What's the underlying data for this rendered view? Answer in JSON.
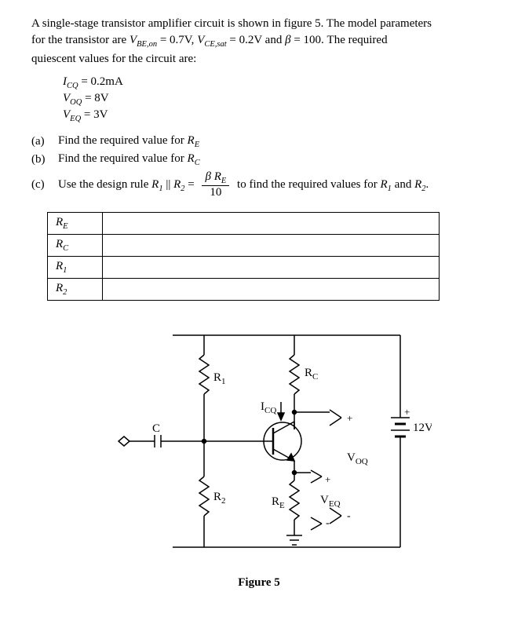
{
  "intro": {
    "line1_pre": "A single-stage transistor amplifier circuit is shown in figure 5. The model parameters",
    "line2_pre": "for the transistor are ",
    "vbe_label": "V",
    "vbe_sub": "BE,on",
    "vbe_eq": " = 0.7V, ",
    "vce_label": "V",
    "vce_sub": "CE,sat",
    "vce_eq": " = 0.2V and ",
    "beta_sym": "β",
    "beta_eq": " = 100.  The required",
    "line3": "quiescent values for the circuit are:"
  },
  "quiescent": {
    "icq_label": "I",
    "icq_sub": "CQ",
    "icq_val": " = 0.2mA",
    "voq_label": "V",
    "voq_sub": "OQ",
    "voq_val": " = 8V",
    "veq_label": "V",
    "veq_sub": "EQ",
    "veq_val": " = 3V"
  },
  "parts": {
    "a": {
      "label": "(a)",
      "text_pre": "Find the required value for ",
      "sym": "R",
      "sym_sub": "E"
    },
    "b": {
      "label": "(b)",
      "text_pre": "Find the required value for ",
      "sym": "R",
      "sym_sub": "C"
    },
    "c": {
      "label": "(c)",
      "text_pre": "Use the design rule ",
      "r1": "R",
      "r1_sub": "1",
      "parallel": " || ",
      "r2": "R",
      "r2_sub": "2",
      "eq": "  =  ",
      "num_beta": "β ",
      "num_r": "R",
      "num_r_sub": "E",
      "den": "10",
      "text_post": " to find the required values for ",
      "r1o": "R",
      "r1o_sub": "1",
      "and": " and ",
      "r2o": "R",
      "r2o_sub": "2",
      "period": "."
    }
  },
  "table": {
    "rows": [
      {
        "sym": "R",
        "sub": "E"
      },
      {
        "sym": "R",
        "sub": "C"
      },
      {
        "sym": "R",
        "sub": "1"
      },
      {
        "sym": "R",
        "sub": "2"
      }
    ]
  },
  "circuit": {
    "labels": {
      "R1": "R",
      "R1_sub": "1",
      "R2": "R",
      "R2_sub": "2",
      "RC": "R",
      "RC_sub": "C",
      "RE": "R",
      "RE_sub": "E",
      "ICQ": "I",
      "ICQ_sub": "CQ",
      "VOQ": "V",
      "VOQ_sub": "OQ",
      "VEQ": "V",
      "VEQ_sub": "EQ",
      "C": "C",
      "supply": "12V"
    },
    "colors": {
      "stroke": "#000000",
      "bg": "#ffffff"
    },
    "stroke_width": 1.5
  },
  "caption": "Figure 5"
}
